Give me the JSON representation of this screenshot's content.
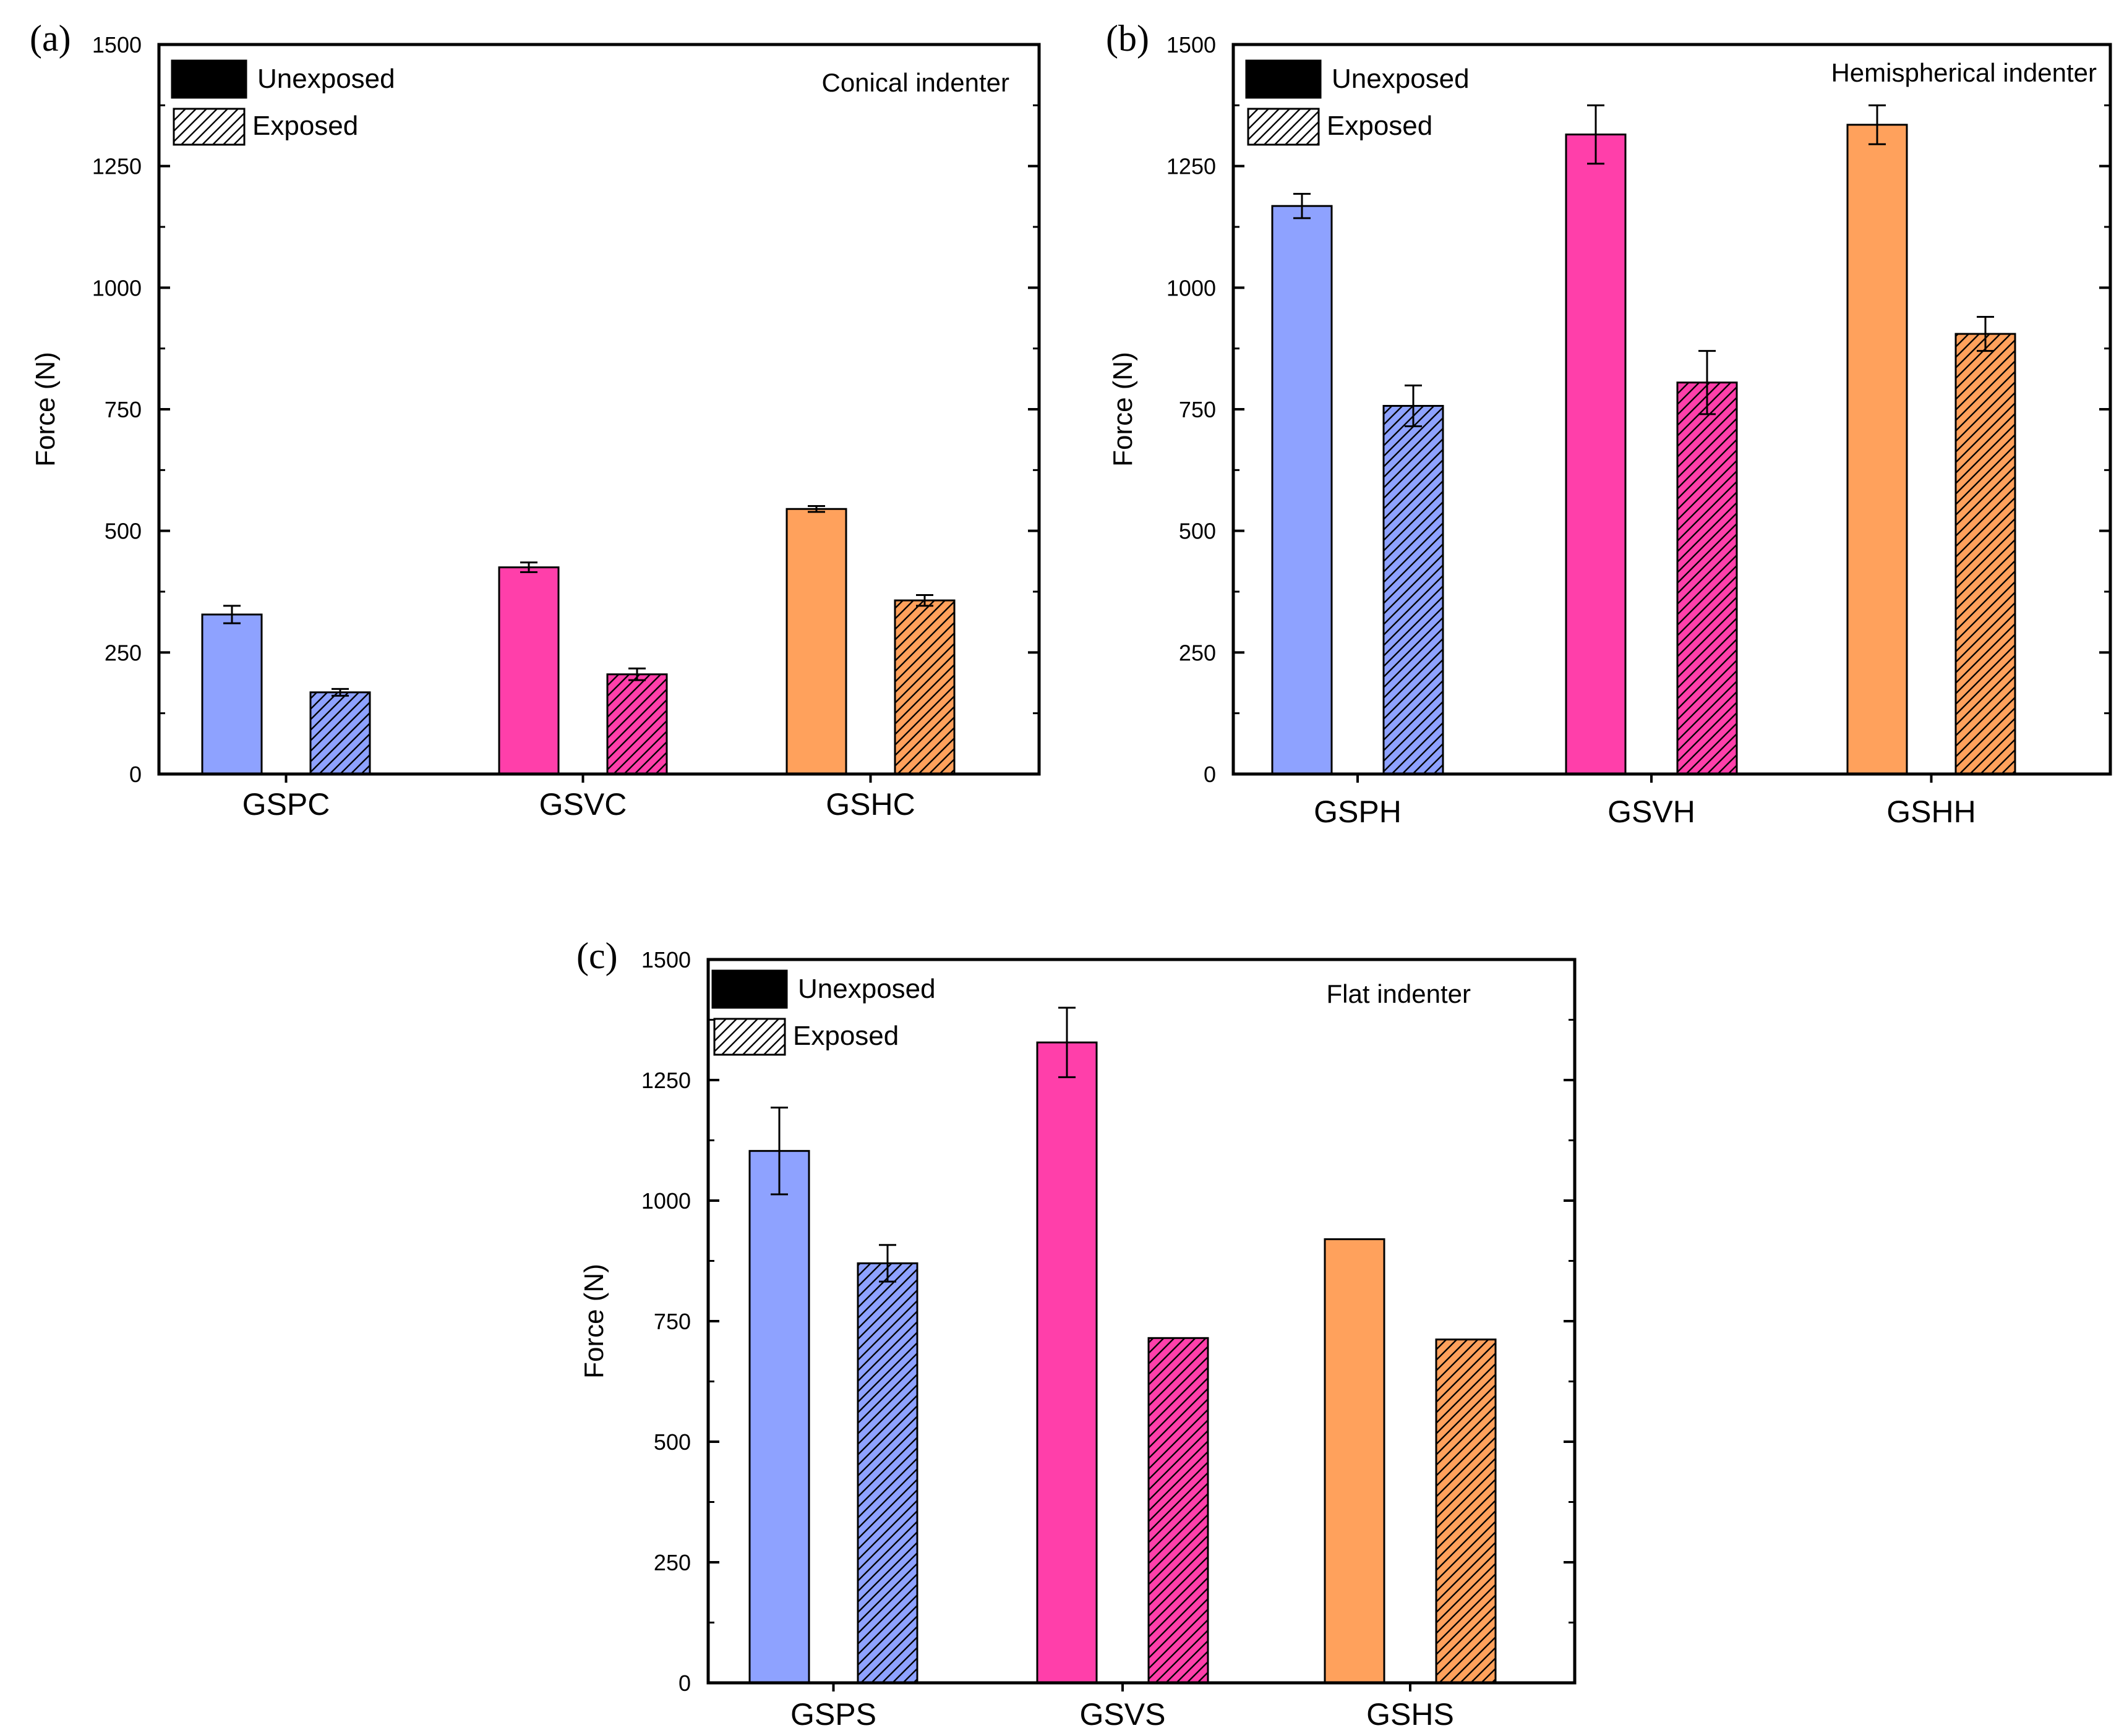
{
  "figure": {
    "background": "#ffffff",
    "colors": {
      "GSP": "#8EA2FF",
      "GSV": "#FF3FAA",
      "GSH": "#FFA15C",
      "frame": "#000000"
    }
  },
  "chart_data": [
    {
      "panel": "(a)",
      "type": "bar",
      "annotation": "Conical indenter",
      "ylabel": "Force (N)",
      "xlabel": "",
      "ylim": [
        0,
        1500
      ],
      "yticks": [
        0,
        250,
        500,
        750,
        1000,
        1250,
        1500
      ],
      "legend": {
        "position": "top-left",
        "items": [
          "Unexposed",
          "Exposed"
        ]
      },
      "categories": [
        "GSPC",
        "GSVC",
        "GSHC"
      ],
      "series": [
        {
          "name": "Unexposed",
          "values": [
            328,
            425,
            545
          ],
          "errors": [
            18,
            10,
            6
          ]
        },
        {
          "name": "Exposed",
          "values": [
            168,
            205,
            357
          ],
          "errors": [
            7,
            12,
            11
          ]
        }
      ]
    },
    {
      "panel": "(b)",
      "type": "bar",
      "annotation": "Hemispherical indenter",
      "ylabel": "Force (N)",
      "xlabel": "",
      "ylim": [
        0,
        1500
      ],
      "yticks": [
        0,
        250,
        500,
        750,
        1000,
        1250,
        1500
      ],
      "legend": {
        "position": "top-left",
        "items": [
          "Unexposed",
          "Exposed"
        ]
      },
      "categories": [
        "GSPH",
        "GSVH",
        "GSHH"
      ],
      "series": [
        {
          "name": "Unexposed",
          "values": [
            1168,
            1315,
            1335
          ],
          "errors": [
            25,
            60,
            40
          ]
        },
        {
          "name": "Exposed",
          "values": [
            757,
            805,
            905
          ],
          "errors": [
            42,
            65,
            35
          ]
        }
      ]
    },
    {
      "panel": "(c)",
      "type": "bar",
      "annotation": "Flat indenter",
      "ylabel": "Force (N)",
      "xlabel": "",
      "ylim": [
        0,
        1500
      ],
      "yticks": [
        0,
        250,
        500,
        750,
        1000,
        1250,
        1500
      ],
      "legend": {
        "position": "top-left",
        "items": [
          "Unexposed",
          "Exposed"
        ]
      },
      "categories": [
        "GSPS",
        "GSVS",
        "GSHS"
      ],
      "series": [
        {
          "name": "Unexposed",
          "values": [
            1103,
            1328,
            920
          ],
          "errors": [
            90,
            72,
            0
          ]
        },
        {
          "name": "Exposed",
          "values": [
            870,
            715,
            712
          ],
          "errors": [
            38,
            0,
            0
          ]
        }
      ]
    }
  ]
}
